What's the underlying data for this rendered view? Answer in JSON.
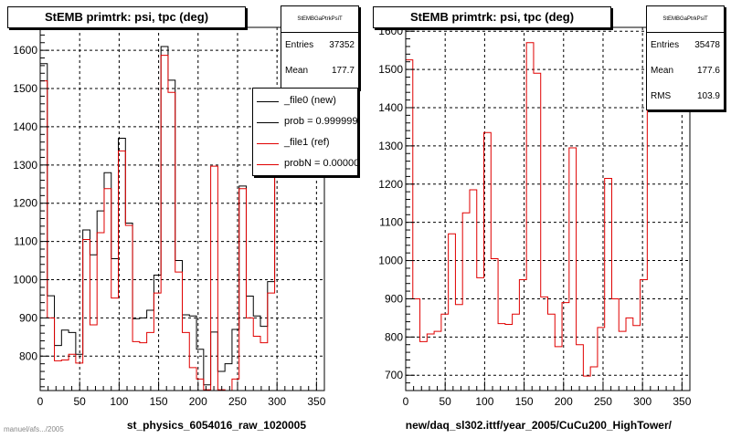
{
  "chart_data": [
    {
      "type": "histogram",
      "title": "StEMB primtrk: psi, tpc (deg)",
      "xlabel": "st_physics_6054016_raw_1020005",
      "xlim": [
        0,
        360
      ],
      "ylim": [
        710,
        1660
      ],
      "xticks": [
        0,
        50,
        100,
        150,
        200,
        250,
        300,
        350
      ],
      "yticks": [
        800,
        900,
        1000,
        1100,
        1200,
        1300,
        1400,
        1500,
        1600
      ],
      "bin_width": 9,
      "grid": true,
      "stats": {
        "name": "StEMBGaPtrkPsiT",
        "entries_label": "Entries",
        "entries": "37352",
        "mean_label": "Mean",
        "mean": "177.7"
      },
      "legend": {
        "position": "top-right",
        "entries": [
          {
            "label": "_file0 (new)",
            "color": "#000000"
          },
          {
            "label": "prob = 0.999999",
            "color": "#000000"
          },
          {
            "label": "_file1 (ref)",
            "color": "#e00000"
          },
          {
            "label": "probN = 0.000000",
            "color": "#e00000"
          }
        ]
      },
      "series": [
        {
          "name": "_file0 (new)",
          "color": "#000000",
          "values": [
            1565,
            958,
            828,
            868,
            862,
            805,
            1130,
            1065,
            1180,
            1280,
            1055,
            1370,
            1148,
            898,
            900,
            920,
            1012,
            1610,
            1522,
            1050,
            908,
            905,
            818,
            725,
            863,
            760,
            780,
            870,
            1245,
            957,
            905,
            878,
            995,
            1380
          ]
        },
        {
          "name": "_file1 (ref)",
          "color": "#e00000",
          "values": [
            1520,
            900,
            788,
            790,
            805,
            782,
            1105,
            882,
            1123,
            1238,
            952,
            1337,
            1142,
            838,
            835,
            862,
            965,
            1587,
            1490,
            1020,
            862,
            770,
            740,
            712,
            1297,
            712,
            700,
            740,
            1238,
            900,
            852,
            835,
            965,
            1372
          ]
        }
      ]
    },
    {
      "type": "histogram",
      "title": "StEMB primtrk: psi, tpc (deg)",
      "xlabel": "new/daq_sl302.ittf/year_2005/CuCu200_HighTower/",
      "xlim": [
        0,
        360
      ],
      "ylim": [
        660,
        1610
      ],
      "xticks": [
        0,
        50,
        100,
        150,
        200,
        250,
        300,
        350
      ],
      "yticks": [
        700,
        800,
        900,
        1000,
        1100,
        1200,
        1300,
        1400,
        1500,
        1600
      ],
      "bin_width": 9,
      "grid": true,
      "stats": {
        "name": "StEMBGaPtrkPsiT",
        "entries_label": "Entries",
        "entries": "35478",
        "mean_label": "Mean",
        "mean": "177.6",
        "rms_label": "RMS",
        "rms": "103.9"
      },
      "series": [
        {
          "name": "",
          "color": "#e00000",
          "values": [
            1525,
            900,
            788,
            808,
            815,
            860,
            1070,
            885,
            1125,
            1185,
            955,
            1335,
            1005,
            835,
            833,
            860,
            950,
            1570,
            1490,
            905,
            860,
            775,
            890,
            1295,
            780,
            698,
            722,
            825,
            1215,
            900,
            815,
            850,
            830,
            950,
            1395
          ]
        }
      ]
    }
  ],
  "footer_text": "manuel/afs.../2005"
}
